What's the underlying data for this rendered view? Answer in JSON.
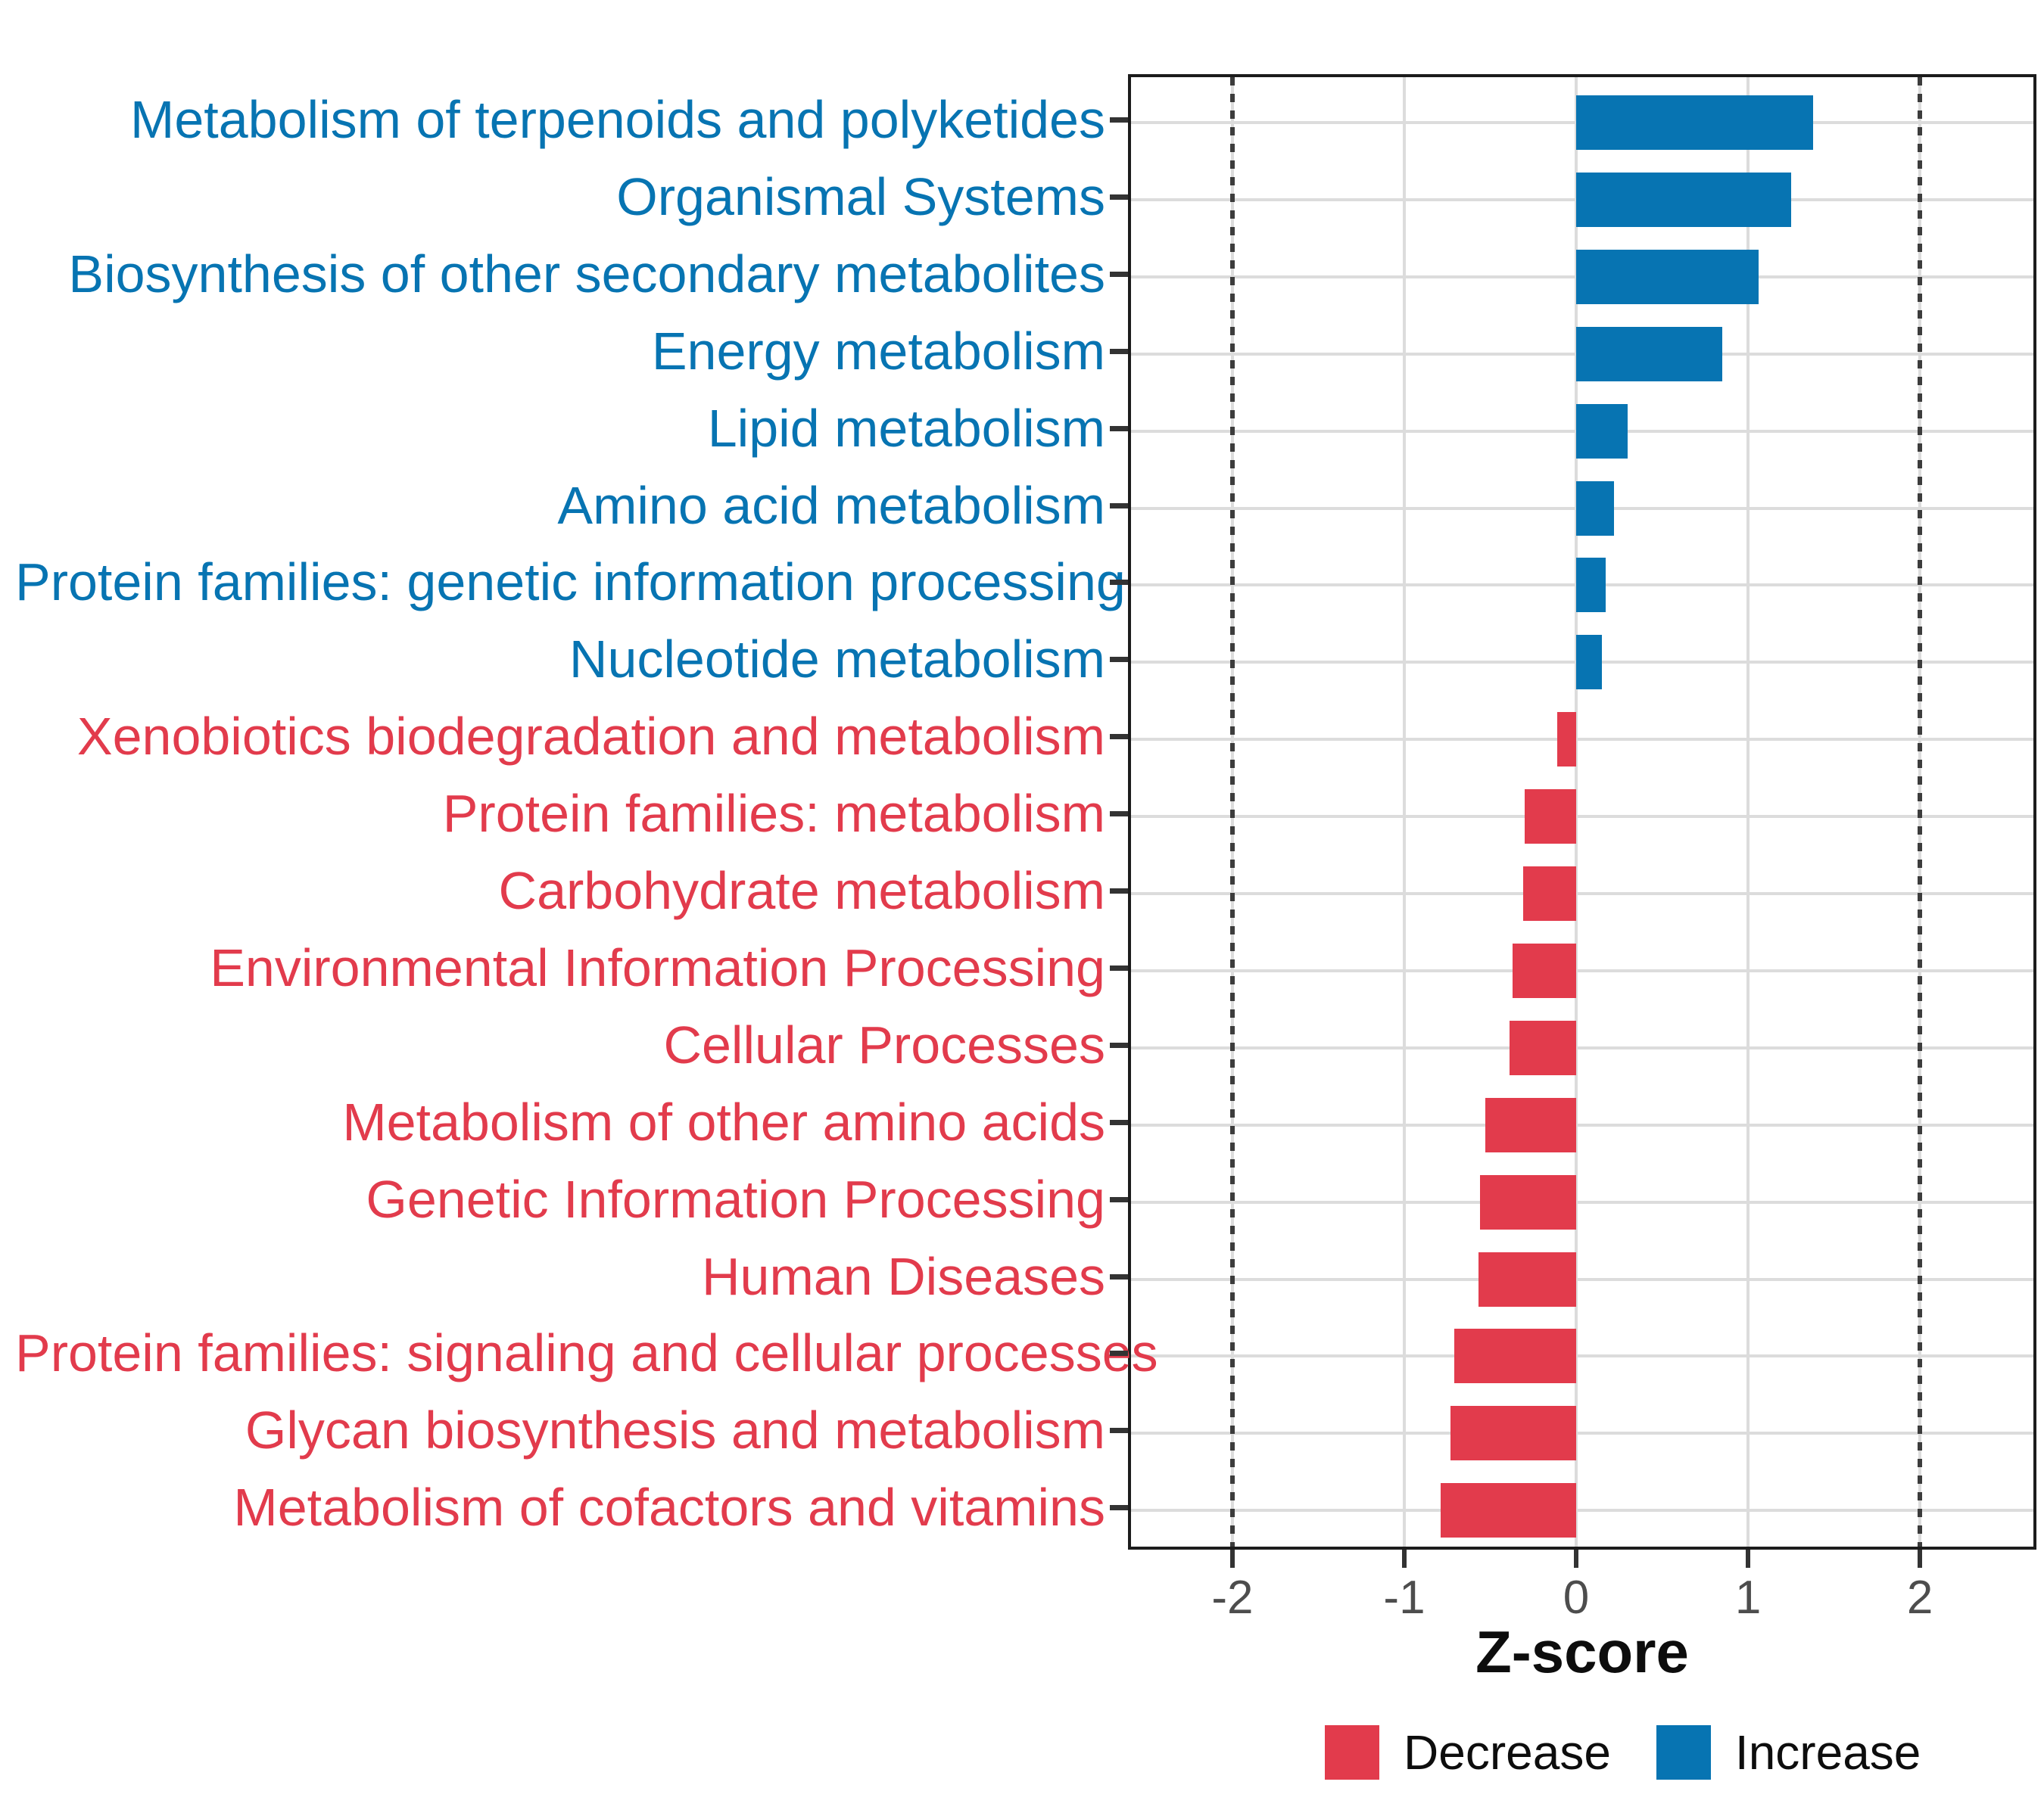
{
  "chart_data": {
    "type": "bar",
    "orientation": "horizontal",
    "xlabel": "Z-score",
    "x_ticks": [
      -2,
      -1,
      0,
      1,
      2
    ],
    "x_tick_labels": [
      "-2",
      "-1",
      "0",
      "1",
      "2"
    ],
    "xlim": [
      -2.59,
      2.66
    ],
    "grid": true,
    "reference_lines": [
      -2,
      2
    ],
    "legend_position": "bottom",
    "categories": [
      "Metabolism of terpenoids and polyketides",
      "Organismal Systems",
      "Biosynthesis of other secondary metabolites",
      "Energy metabolism",
      "Lipid metabolism",
      "Amino acid metabolism",
      "Protein families: genetic information processing",
      "Nucleotide metabolism",
      "Xenobiotics biodegradation and metabolism",
      "Protein families: metabolism",
      "Carbohydrate metabolism",
      "Environmental Information Processing",
      "Cellular Processes",
      "Metabolism of other amino acids",
      "Genetic Information Processing",
      "Human Diseases",
      "Protein families: signaling and cellular processes",
      "Glycan biosynthesis and metabolism",
      "Metabolism of cofactors and vitamins"
    ],
    "values": [
      1.38,
      1.25,
      1.06,
      0.85,
      0.3,
      0.22,
      0.17,
      0.15,
      -0.11,
      -0.3,
      -0.31,
      -0.37,
      -0.39,
      -0.53,
      -0.56,
      -0.57,
      -0.71,
      -0.73,
      -0.79
    ],
    "directions": [
      "Increase",
      "Increase",
      "Increase",
      "Increase",
      "Increase",
      "Increase",
      "Increase",
      "Increase",
      "Decrease",
      "Decrease",
      "Decrease",
      "Decrease",
      "Decrease",
      "Decrease",
      "Decrease",
      "Decrease",
      "Decrease",
      "Decrease",
      "Decrease"
    ]
  },
  "colors": {
    "increase": "#0774B2",
    "decrease": "#E23B4C",
    "grid": "#dcdcdc",
    "axis_text": "#4d4d4d",
    "reference_line": "#3c3c3c"
  },
  "axis": {
    "xlabel": "Z-score"
  },
  "legend": {
    "decrease_label": "Decrease",
    "increase_label": "Increase"
  }
}
